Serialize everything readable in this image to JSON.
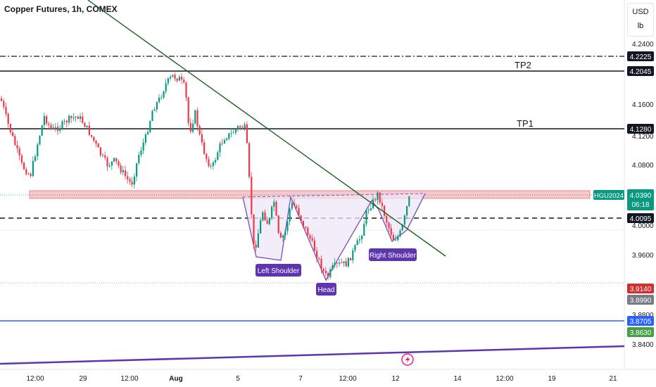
{
  "header": {
    "title": "Copper Futures, 1h, COMEX",
    "currency": "USD",
    "unit": "lb"
  },
  "colors": {
    "up": "#089981",
    "down": "#f23645",
    "trendline": "#1b5e20",
    "pattern": "#7e57c2",
    "zone": "#f8c8cc",
    "blue_line": "#2962ff",
    "purple_line": "#5e35b1"
  },
  "chart_data": {
    "type": "candlestick",
    "symbol": "HGU2024",
    "last_price": "4.0390",
    "countdown": "06:18",
    "y_ticks": [
      "4.2400",
      "4.1600",
      "4.1200",
      "4.0800",
      "4.0000",
      "3.9600",
      "3.8800",
      "3.8400"
    ],
    "x_ticks": [
      "12:00",
      "29",
      "12:00",
      "Aug",
      "5",
      "7",
      "12:00",
      "12",
      "14",
      "12:00",
      "19",
      "21"
    ],
    "price_labels": [
      {
        "text": "4.2225",
        "bg": "#131722",
        "fg": "#ffffff"
      },
      {
        "text": "4.2045",
        "bg": "#131722",
        "fg": "#ffffff"
      },
      {
        "text": "4.1280",
        "bg": "#131722",
        "fg": "#ffffff"
      },
      {
        "text": "4.0095",
        "bg": "#131722",
        "fg": "#ffffff"
      },
      {
        "text": "3.9140",
        "bg": "#d32f2f",
        "fg": "#ffffff"
      },
      {
        "text": "3.8990",
        "bg": "#787b86",
        "fg": "#ffffff"
      },
      {
        "text": "3.8705",
        "bg": "#2962ff",
        "fg": "#ffffff"
      },
      {
        "text": "3.8630",
        "bg": "#43a047",
        "fg": "#ffffff"
      }
    ],
    "levels": [
      {
        "value": 4.2225,
        "style": "dash-dot"
      },
      {
        "value": 4.2045,
        "style": "solid",
        "label": "TP2"
      },
      {
        "value": 4.128,
        "style": "solid",
        "label": "TP1"
      },
      {
        "value": 4.0095,
        "style": "dashed"
      },
      {
        "value": 3.8705,
        "style": "blue"
      }
    ],
    "annotations": [
      "TP2",
      "TP1",
      "Left Shoulder",
      "Head",
      "Right Shoulder"
    ],
    "pattern": "inverse head and shoulders"
  }
}
